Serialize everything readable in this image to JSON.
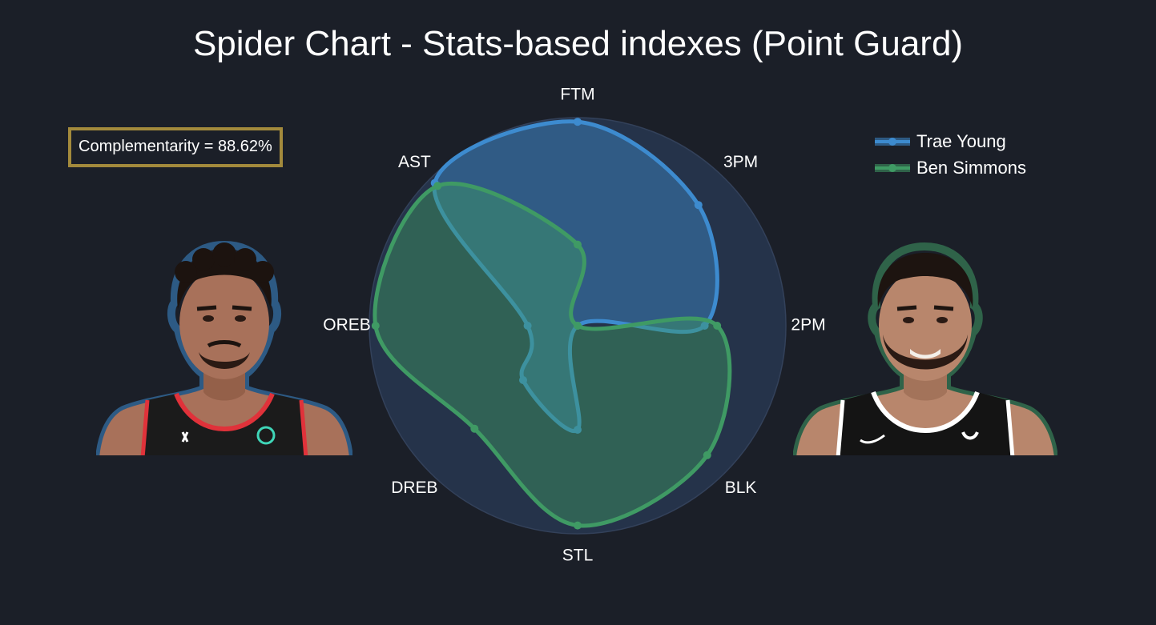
{
  "title": "Spider Chart - Stats-based indexes (Point Guard)",
  "complementarity": "Complementarity = 88.62%",
  "colors": {
    "background": "#1b1f28",
    "trae": "#3d8bcf",
    "ben": "#3f9a64",
    "box_border": "#a38a3c",
    "radar_bg": "#25334a"
  },
  "legend": [
    {
      "name": "Trae Young",
      "color": "#3d8bcf"
    },
    {
      "name": "Ben Simmons",
      "color": "#3f9a64"
    }
  ],
  "players": [
    {
      "name": "Trae Young",
      "jersey": "#1b1b1b",
      "trim": "#e0323a"
    },
    {
      "name": "Ben Simmons",
      "jersey": "#141414",
      "trim": "#ffffff"
    }
  ],
  "chart_data": {
    "type": "radar",
    "categories": [
      "FTM",
      "3PM",
      "2PM",
      "BLK",
      "STL",
      "DREB",
      "OREB",
      "AST"
    ],
    "range": [
      0,
      1
    ],
    "series": [
      {
        "name": "Trae Young",
        "values": [
          0.98,
          0.82,
          0.61,
          0.0,
          0.5,
          0.37,
          0.24,
          0.97
        ]
      },
      {
        "name": "Ben Simmons",
        "values": [
          0.39,
          0.0,
          0.67,
          0.88,
          0.96,
          0.7,
          0.97,
          0.95
        ]
      }
    ]
  }
}
